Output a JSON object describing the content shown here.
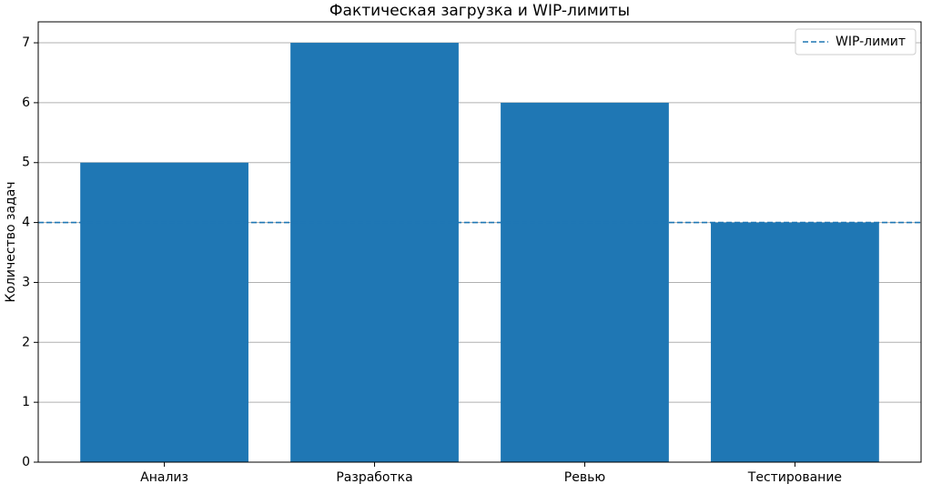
{
  "chart_data": {
    "type": "bar",
    "title": "Фактическая загрузка и WIP-лимиты",
    "y_label": "Количество задач",
    "categories": [
      "Анализ",
      "Разработка",
      "Ревью",
      "Тестирование"
    ],
    "values": [
      5,
      7,
      6,
      4
    ],
    "color": "#1f77b4",
    "ylim": [
      0,
      7.35
    ],
    "yticks": [
      0,
      1,
      2,
      3,
      4,
      5,
      6,
      7
    ],
    "grid": true,
    "reference_line": {
      "name": "WIP-лимит",
      "value": 4,
      "color": "#1f77b4",
      "style": "dashed"
    },
    "legend": "upper-right"
  }
}
